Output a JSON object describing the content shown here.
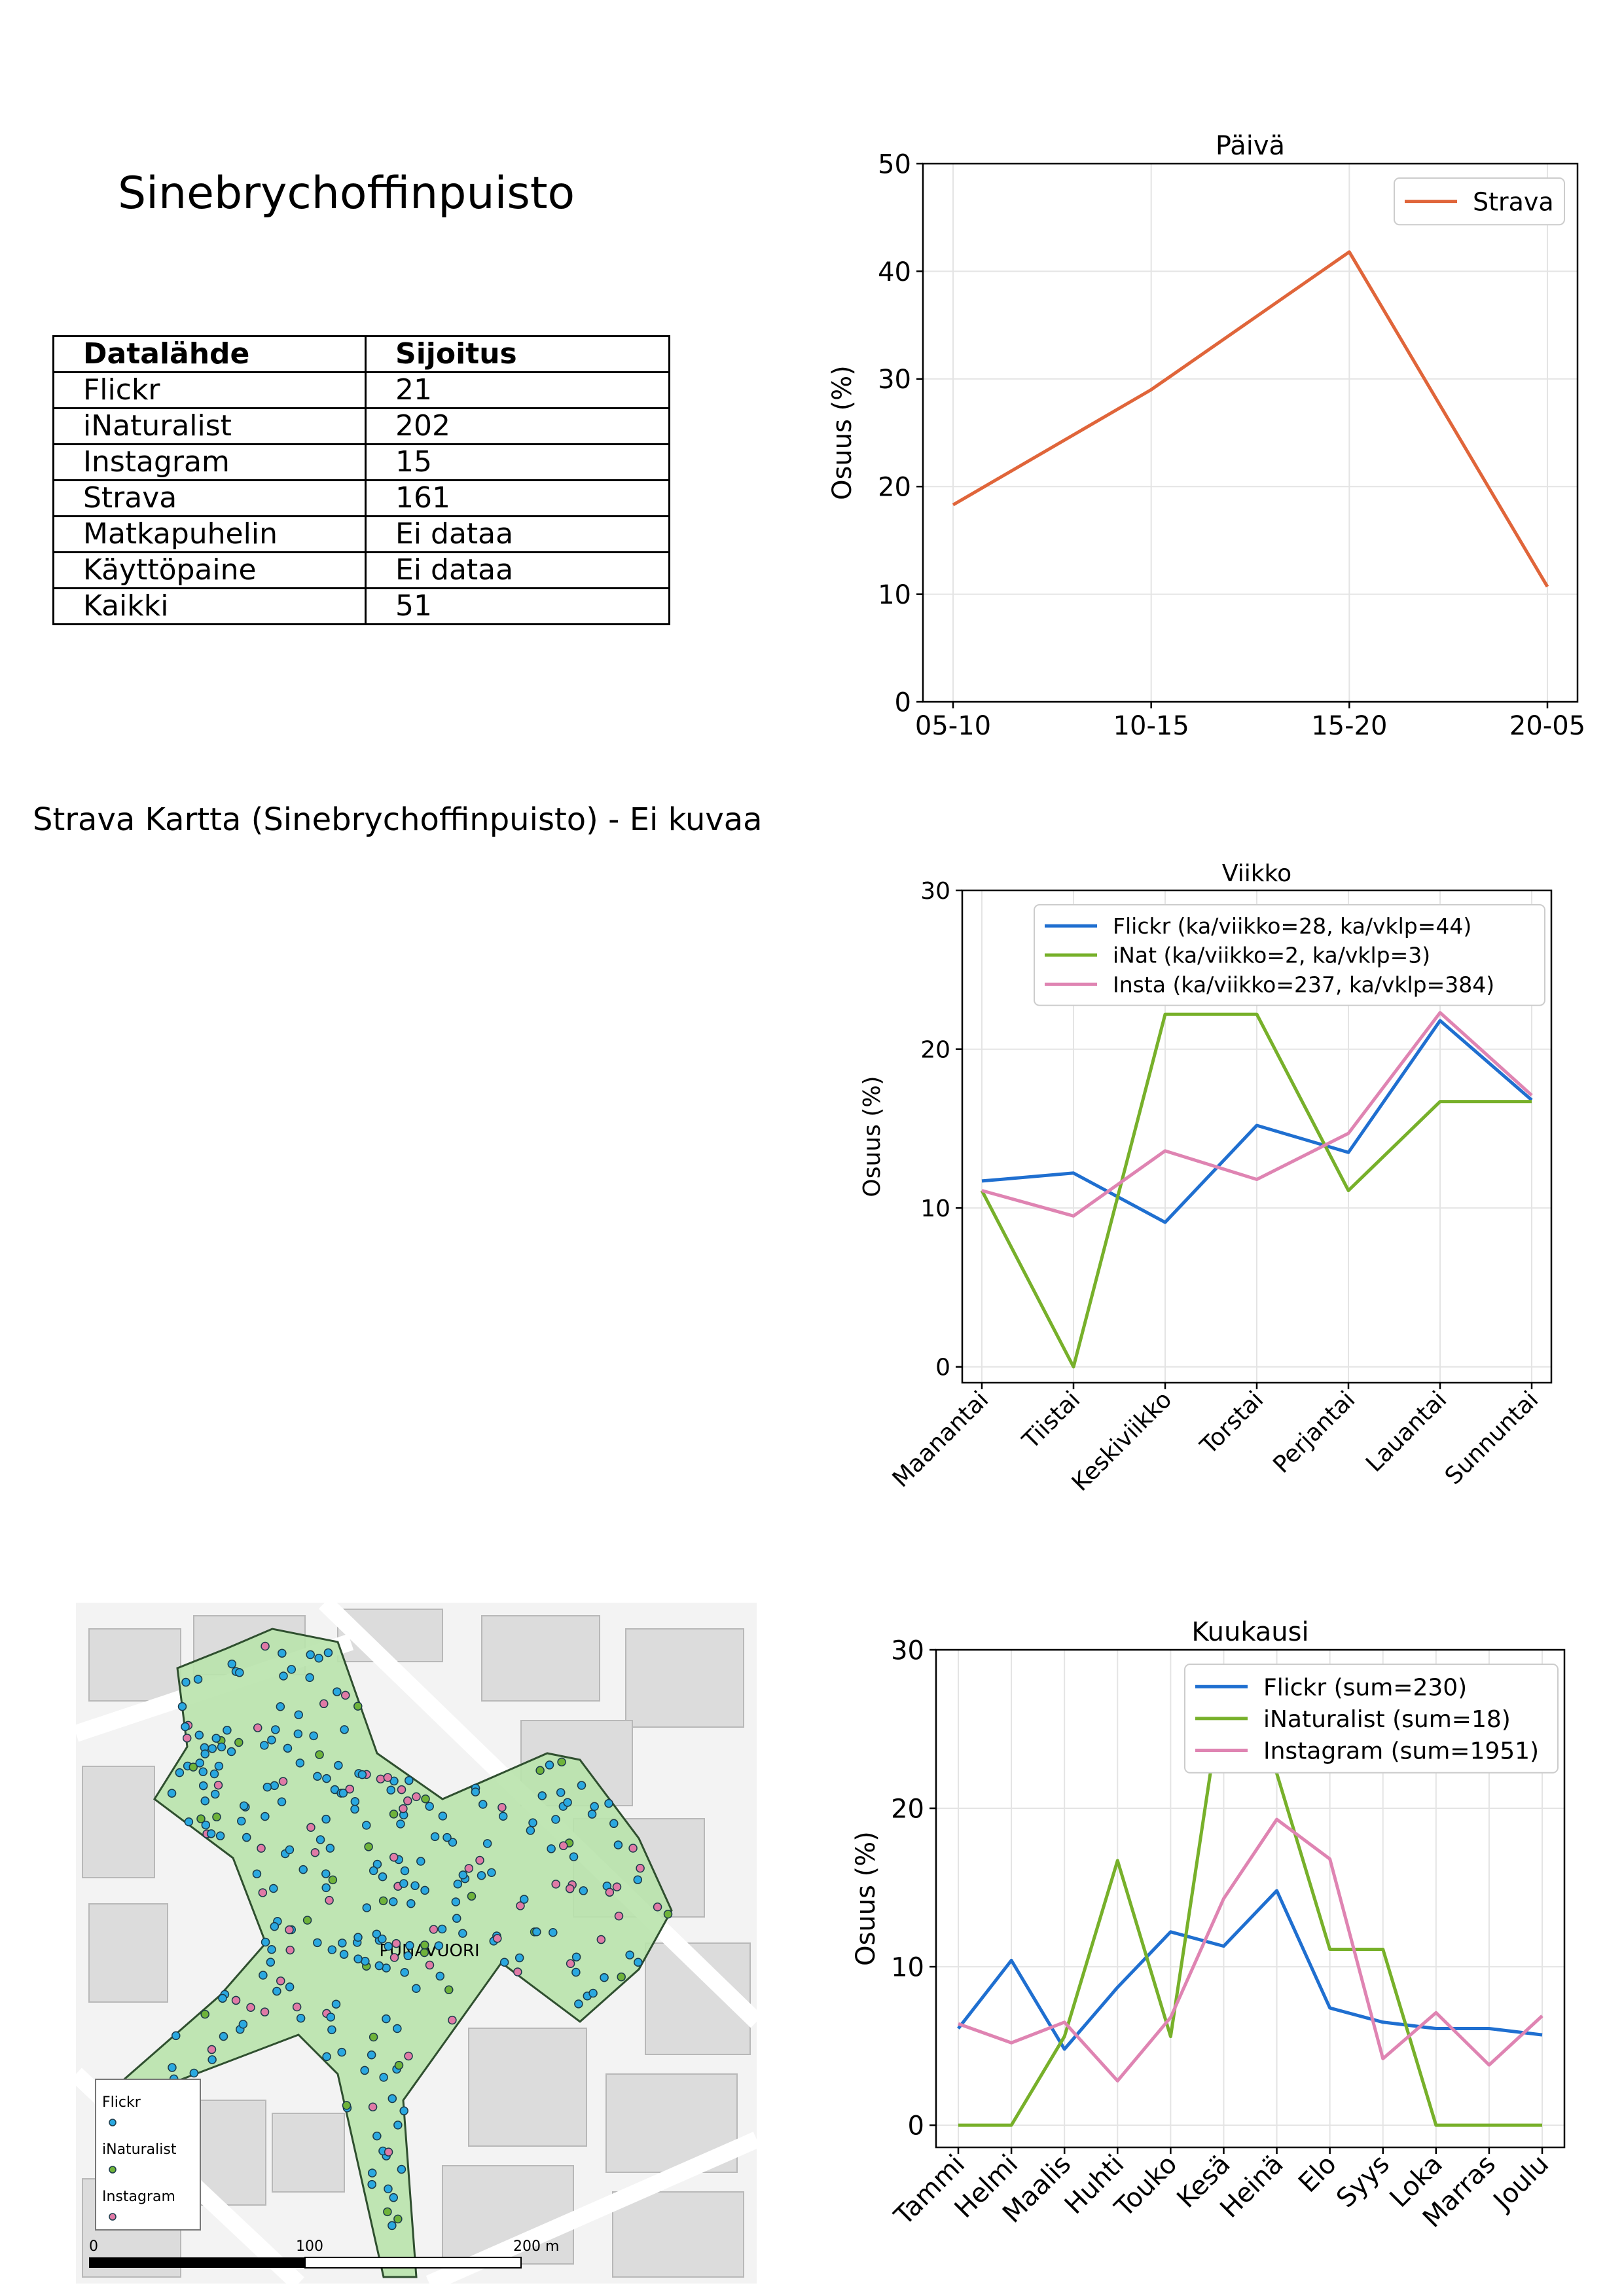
{
  "page": {
    "title": "Sinebrychoffinpuisto",
    "strava_note": "Strava Kartta (Sinebrychoffinpuisto) - Ei kuvaa"
  },
  "table": {
    "headers": [
      "Datalähde",
      "Sijoitus"
    ],
    "rows": [
      [
        "Flickr",
        "21"
      ],
      [
        "iNaturalist",
        "202"
      ],
      [
        "Instagram",
        "15"
      ],
      [
        "Strava",
        "161"
      ],
      [
        "Matkapuhelin",
        "Ei dataa"
      ],
      [
        "Käyttöpaine",
        "Ei dataa"
      ],
      [
        "Kaikki",
        "51"
      ]
    ]
  },
  "map": {
    "legend": [
      "Flickr",
      "iNaturalist",
      "Instagram"
    ],
    "scale_labels": [
      "0",
      "100",
      "200 m"
    ],
    "area_label": "PUNAVUORI",
    "colors": {
      "flickr": "#2aa8e0",
      "inaturalist": "#6fb33a",
      "instagram": "#e07aa6",
      "park": "#b9e3ac"
    }
  },
  "chart_data": [
    {
      "type": "line",
      "title": "Päivä",
      "xlabel": "",
      "ylabel": "Osuus (%)",
      "categories": [
        "05-10",
        "10-15",
        "15-20",
        "20-05"
      ],
      "ylim": [
        0,
        50
      ],
      "yticks": [
        0,
        10,
        20,
        30,
        40,
        50
      ],
      "grid": true,
      "legend_position": "top-right",
      "series": [
        {
          "name": "Strava",
          "color": "#e0653a",
          "values": [
            18.3,
            29.0,
            41.8,
            10.7
          ]
        }
      ]
    },
    {
      "type": "line",
      "title": "Viikko",
      "xlabel": "",
      "ylabel": "Osuus (%)",
      "categories": [
        "Maanantai",
        "Tiistai",
        "Keskiviikko",
        "Torstai",
        "Perjantai",
        "Lauantai",
        "Sunnuntai"
      ],
      "ylim": [
        -1,
        30
      ],
      "yticks": [
        0,
        10,
        20,
        30
      ],
      "grid": true,
      "legend_position": "top-right",
      "series": [
        {
          "name": "Flickr (ka/viikko=28, ka/vklp=44)",
          "color": "#1f6fd0",
          "values": [
            11.7,
            12.2,
            9.1,
            15.2,
            13.5,
            21.8,
            16.8
          ]
        },
        {
          "name": "iNat (ka/viikko=2, ka/vklp=3)",
          "color": "#77b02a",
          "values": [
            11.1,
            0.0,
            22.2,
            22.2,
            11.1,
            16.7,
            16.7
          ]
        },
        {
          "name": "Insta (ka/viikko=237, ka/vklp=384)",
          "color": "#df84b2",
          "values": [
            11.1,
            9.5,
            13.6,
            11.8,
            14.7,
            22.3,
            17.1
          ]
        }
      ]
    },
    {
      "type": "line",
      "title": "Kuukausi",
      "xlabel": "",
      "ylabel": "Osuus (%)",
      "categories": [
        "Tammi",
        "Helmi",
        "Maalis",
        "Huhti",
        "Touko",
        "Kesä",
        "Heinä",
        "Elo",
        "Syys",
        "Loka",
        "Marras",
        "Joulu"
      ],
      "ylim": [
        -1.4,
        30
      ],
      "yticks": [
        0,
        10,
        20,
        30
      ],
      "grid": true,
      "legend_position": "top-right",
      "series": [
        {
          "name": "Flickr (sum=230)",
          "color": "#1f6fd0",
          "values": [
            6.1,
            10.4,
            4.8,
            8.7,
            12.2,
            11.3,
            14.8,
            7.4,
            6.5,
            6.1,
            6.1,
            5.7
          ]
        },
        {
          "name": "iNaturalist (sum=18)",
          "color": "#77b02a",
          "values": [
            0.0,
            0.0,
            5.6,
            16.7,
            5.6,
            27.8,
            22.2,
            11.1,
            11.1,
            0.0,
            0.0,
            0.0
          ]
        },
        {
          "name": "Instagram (sum=1951)",
          "color": "#df84b2",
          "values": [
            6.4,
            5.2,
            6.5,
            2.8,
            6.8,
            14.3,
            19.3,
            16.8,
            4.2,
            7.1,
            3.8,
            6.9
          ]
        }
      ]
    }
  ]
}
